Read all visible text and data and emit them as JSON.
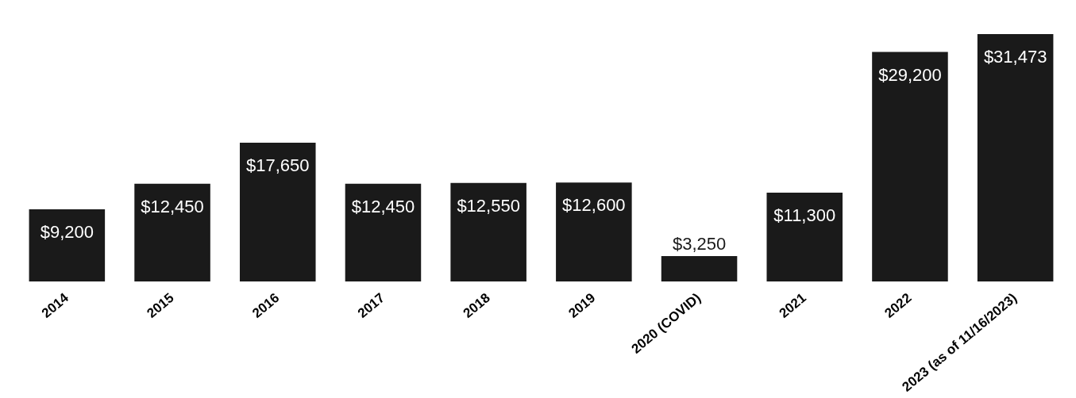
{
  "chart_data": {
    "type": "bar",
    "categories": [
      "2014",
      "2015",
      "2016",
      "2017",
      "2018",
      "2019",
      "2020 (COVID)",
      "2021",
      "2022",
      "2023 (as of 11/16/2023)"
    ],
    "values": [
      9200,
      12450,
      17650,
      12450,
      12550,
      12600,
      3250,
      11300,
      29200,
      31473
    ],
    "value_labels": [
      "$9,200",
      "$12,450",
      "$17,650",
      "$12,450",
      "$12,550",
      "$12,600",
      "$3,250",
      "$11,300",
      "$29,200",
      "$31,473"
    ],
    "color": "#1a1a1a",
    "relative": false
  }
}
